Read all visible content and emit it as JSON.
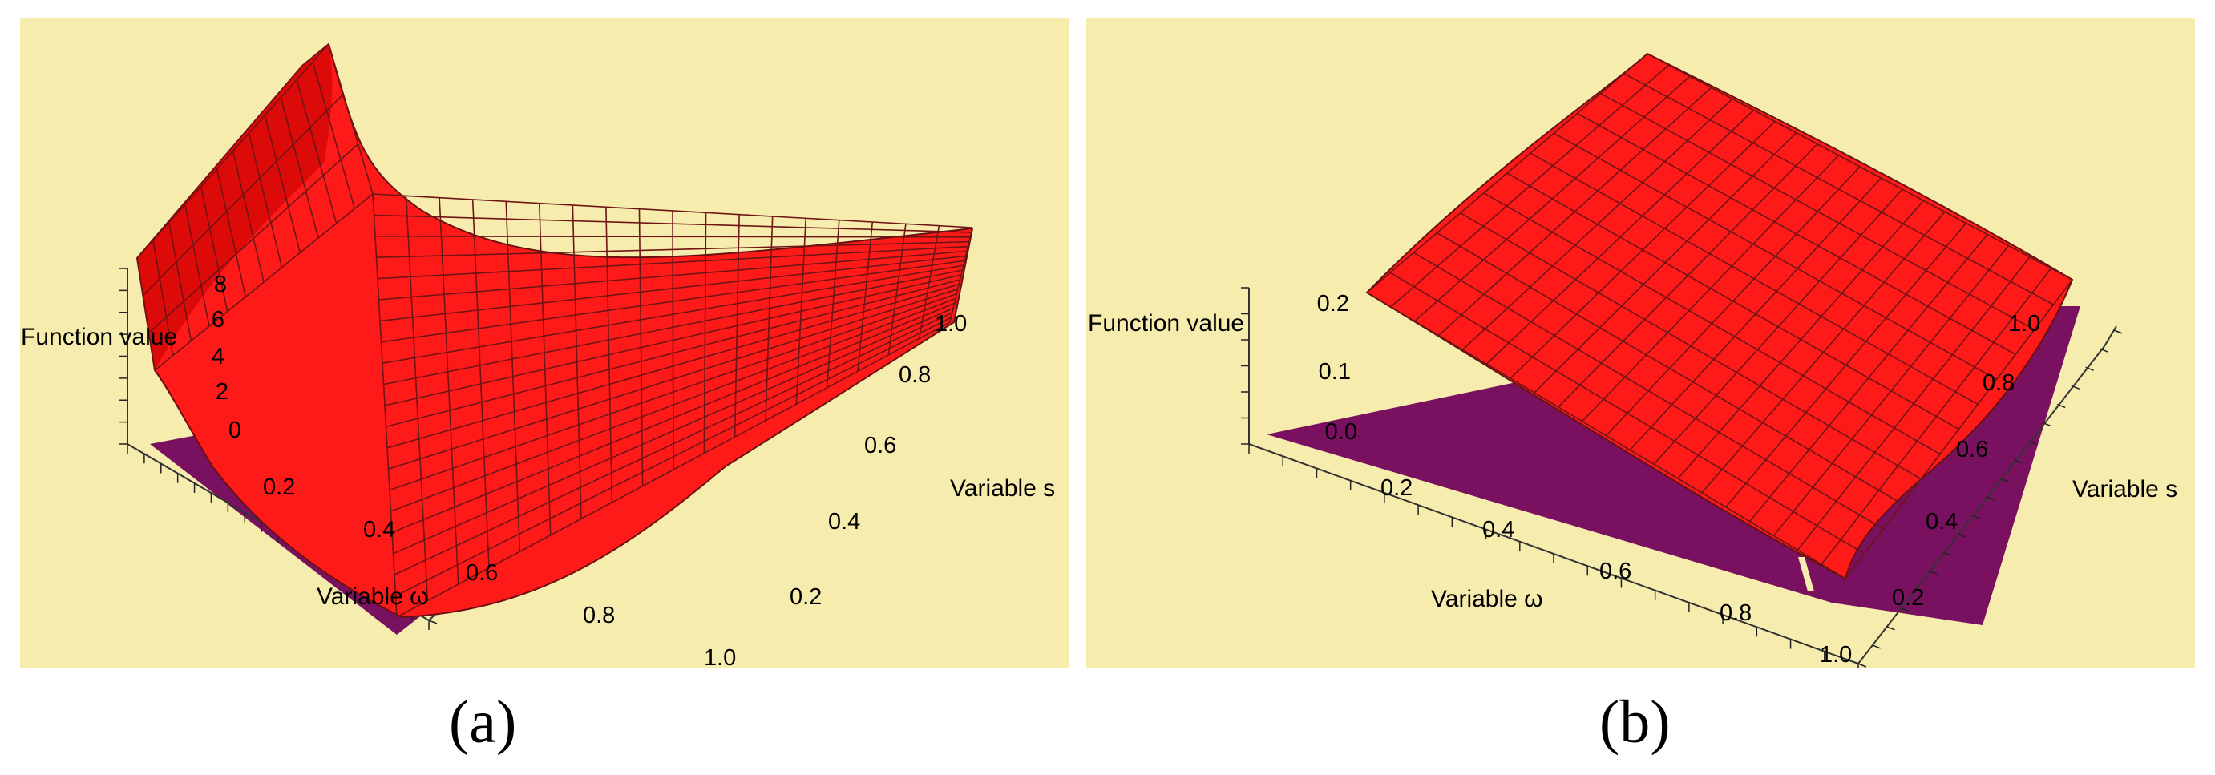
{
  "chart_data": [
    {
      "type": "surface3d",
      "caption": "(a)",
      "zlabel": "Function value",
      "xlabel": "Variable ω",
      "ylabel": "Variable s",
      "x_ticks": [
        "0.2",
        "0.4",
        "0.6",
        "0.8",
        "1.0"
      ],
      "y_ticks": [
        "0.2",
        "0.4",
        "0.6",
        "0.8",
        "1.0"
      ],
      "z_ticks": [
        "0",
        "2",
        "4",
        "6",
        "8"
      ],
      "x_range": [
        0.1,
        1.0
      ],
      "y_range": [
        0.1,
        1.0
      ],
      "zlim": [
        0,
        8
      ],
      "surface_samples": {
        "omega": [
          0.1,
          0.2,
          0.4,
          0.6,
          0.8,
          1.0
        ],
        "s_0.1": [
          6.1,
          2.2,
          0.7,
          0.2,
          0.05,
          0.0
        ],
        "s_1.0": [
          8.0,
          7.3,
          6.6,
          6.2,
          5.9,
          5.6
        ]
      },
      "surface_color": "#ff1a1a",
      "plane_color": "#7a1060",
      "background": "#f6ecad"
    },
    {
      "type": "surface3d",
      "caption": "(b)",
      "zlabel": "Function value",
      "xlabel": "Variable ω",
      "ylabel": "Variable s",
      "x_ticks": [
        "0.2",
        "0.4",
        "0.6",
        "0.8",
        "1.0"
      ],
      "y_ticks": [
        "0.2",
        "0.4",
        "0.6",
        "0.8",
        "1.0"
      ],
      "z_ticks": [
        "0.0",
        "0.1",
        "0.2"
      ],
      "x_range": [
        0.1,
        1.0
      ],
      "y_range": [
        0.1,
        1.0
      ],
      "zlim": [
        0,
        0.25
      ],
      "surface_samples": {
        "omega": [
          0.1,
          0.4,
          0.7,
          1.0
        ],
        "s_0.1": [
          0.22,
          0.14,
          0.05,
          -0.02
        ],
        "s_1.0": [
          0.26,
          0.25,
          0.24,
          0.23
        ]
      },
      "surface_color": "#ff1a1a",
      "plane_color": "#7a1060",
      "background": "#f6ecad"
    }
  ]
}
